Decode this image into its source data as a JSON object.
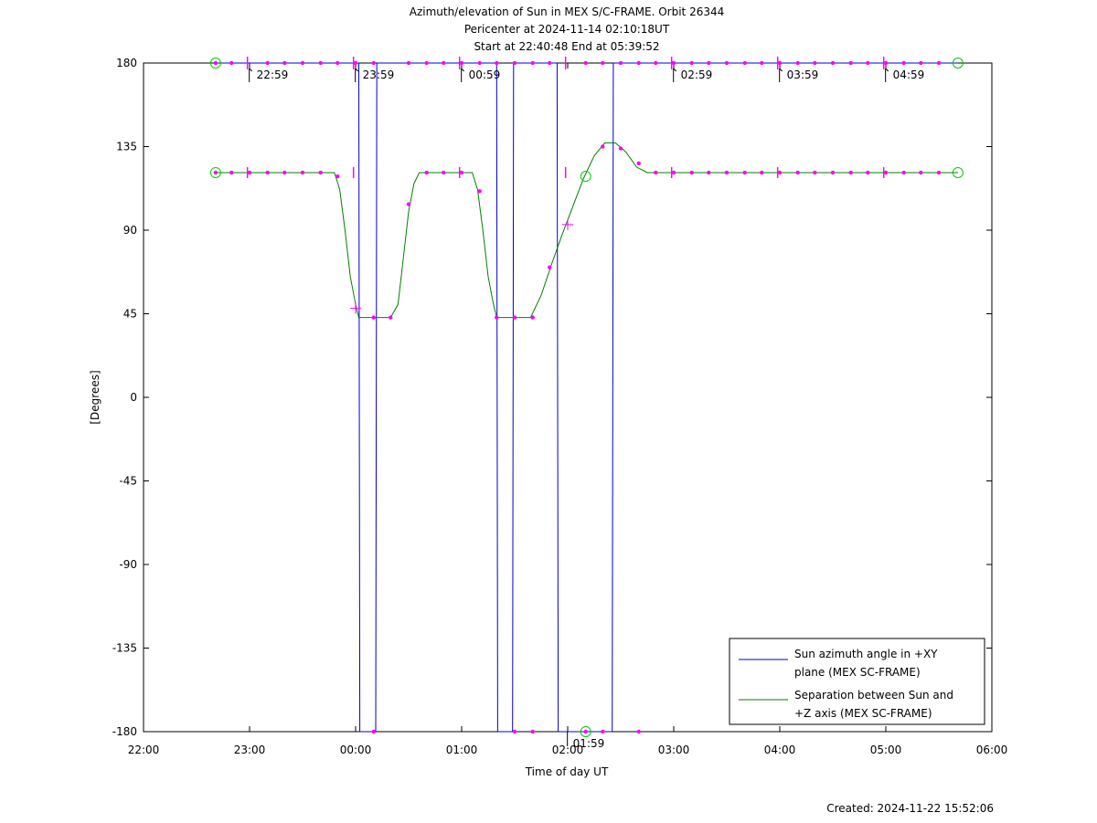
{
  "chart_data": {
    "type": "line",
    "title": "Azimuth/elevation of Sun in MEX S/C-FRAME.  Orbit 26344",
    "subtitle_lines": [
      "Pericenter at 2024-11-14 02:10:18UT",
      "Start at 22:40:48 End at 05:39:52"
    ],
    "xlabel": "Time of day UT",
    "ylabel": "[Degrees]",
    "x_unit": "hours since 22:00 UT (2024-11-13)",
    "xlim": [
      0,
      8
    ],
    "ylim": [
      -180,
      180
    ],
    "x_ticks": [
      0,
      1,
      2,
      3,
      4,
      5,
      6,
      7,
      8
    ],
    "x_tick_labels": [
      "22:00",
      "23:00",
      "00:00",
      "01:00",
      "02:00",
      "03:00",
      "04:00",
      "05:00",
      "06:00"
    ],
    "y_ticks": [
      180,
      135,
      90,
      45,
      0,
      -45,
      -90,
      -135,
      -180
    ],
    "y_tick_labels": [
      "180",
      "135",
      "90",
      "45",
      "0",
      "-45",
      "-90",
      "-135",
      "-180"
    ],
    "legend_position": "bottom-right",
    "series": [
      {
        "name": "Sun azimuth angle in +XY plane (MEX SC-FRAME)",
        "legend_lines": [
          "Sun azimuth angle in +XY",
          "plane (MEX SC-FRAME)"
        ],
        "color": "#0000cc",
        "x": [
          0.68,
          2.03,
          2.04,
          2.19,
          2.2,
          3.33,
          3.34,
          3.48,
          3.49,
          3.9,
          3.91,
          4.42,
          4.43,
          7.68
        ],
        "y": [
          180,
          180,
          -180,
          -180,
          180,
          180,
          -180,
          -180,
          180,
          180,
          -180,
          -180,
          180,
          180
        ]
      },
      {
        "name": "Separation between Sun and +Z axis (MEX SC-FRAME)",
        "legend_lines": [
          "Separation between Sun and",
          "+Z axis (MEX SC-FRAME)"
        ],
        "color": "#008000",
        "x": [
          0.68,
          1.8,
          1.85,
          1.9,
          1.95,
          2.0,
          2.03,
          2.2,
          2.33,
          2.4,
          2.45,
          2.5,
          2.55,
          2.6,
          3.0,
          3.1,
          3.15,
          3.2,
          3.25,
          3.3,
          3.33,
          3.5,
          3.65,
          3.75,
          3.85,
          3.95,
          4.05,
          4.15,
          4.25,
          4.35,
          4.45,
          4.55,
          4.65,
          4.75,
          4.85,
          5.0,
          7.68
        ],
        "y": [
          121,
          121,
          112,
          90,
          65,
          50,
          43,
          43,
          43,
          50,
          75,
          100,
          115,
          121,
          121,
          121,
          112,
          90,
          65,
          50,
          43,
          43,
          43,
          55,
          72,
          88,
          103,
          118,
          130,
          137,
          137,
          132,
          124,
          121,
          121,
          121,
          121
        ]
      }
    ],
    "markers": {
      "color": "#ff00ff",
      "top_points_x": [
        0.68,
        0.83,
        1.17,
        1.33,
        1.5,
        1.67,
        1.83,
        2.0,
        2.17,
        2.5,
        2.67,
        2.83,
        3.0,
        3.17,
        3.33,
        3.5,
        3.67,
        3.83,
        4.17,
        4.33,
        4.5,
        4.67,
        4.83,
        5.0,
        5.17,
        5.33,
        5.5,
        5.67,
        5.83,
        6.0,
        6.17,
        6.33,
        6.5,
        6.67,
        6.83,
        7.0,
        7.17,
        7.33,
        7.5
      ],
      "bottom_points_x": [
        2.17,
        3.5,
        3.67,
        4.17,
        4.33,
        4.67
      ],
      "curve_points": [
        [
          0.68,
          121
        ],
        [
          0.83,
          121
        ],
        [
          1.0,
          121
        ],
        [
          1.17,
          121
        ],
        [
          1.33,
          121
        ],
        [
          1.5,
          121
        ],
        [
          1.67,
          121
        ],
        [
          1.83,
          119
        ],
        [
          2.17,
          43
        ],
        [
          2.33,
          43
        ],
        [
          2.5,
          104
        ],
        [
          2.67,
          121
        ],
        [
          2.83,
          121
        ],
        [
          3.0,
          121
        ],
        [
          3.17,
          111
        ],
        [
          3.33,
          43
        ],
        [
          3.5,
          43
        ],
        [
          3.67,
          43
        ],
        [
          3.83,
          70
        ],
        [
          4.33,
          135
        ],
        [
          4.5,
          134
        ],
        [
          4.67,
          126
        ],
        [
          4.83,
          121
        ],
        [
          5.0,
          121
        ],
        [
          5.17,
          121
        ],
        [
          5.33,
          121
        ],
        [
          5.5,
          121
        ],
        [
          5.67,
          121
        ],
        [
          5.83,
          121
        ],
        [
          6.0,
          121
        ],
        [
          6.17,
          121
        ],
        [
          6.33,
          121
        ],
        [
          6.5,
          121
        ],
        [
          6.67,
          121
        ],
        [
          6.83,
          121
        ],
        [
          7.0,
          121
        ],
        [
          7.17,
          121
        ],
        [
          7.33,
          121
        ],
        [
          7.5,
          121
        ]
      ],
      "hour_ticks_x": [
        0.98,
        1.98,
        2.98,
        3.98,
        4.98,
        5.98,
        6.98
      ],
      "cross_points": [
        [
          2.0,
          48
        ],
        [
          4.0,
          93
        ]
      ],
      "circles": [
        [
          0.68,
          180
        ],
        [
          0.68,
          121
        ],
        [
          7.68,
          180
        ],
        [
          7.68,
          121
        ],
        [
          4.17,
          119
        ],
        [
          4.17,
          -180
        ]
      ]
    },
    "time_annotations": [
      {
        "x": 0.98,
        "y": 180,
        "label": "22:59"
      },
      {
        "x": 1.98,
        "y": 180,
        "label": "23:59"
      },
      {
        "x": 2.98,
        "y": 180,
        "label": "00:59"
      },
      {
        "x": 3.98,
        "y": -180,
        "label": "01:59"
      },
      {
        "x": 4.98,
        "y": 180,
        "label": "02:59"
      },
      {
        "x": 5.98,
        "y": 180,
        "label": "03:59"
      },
      {
        "x": 6.98,
        "y": 180,
        "label": "04:59"
      }
    ]
  },
  "footer": {
    "created": "Created: 2024-11-22 15:52:06"
  }
}
